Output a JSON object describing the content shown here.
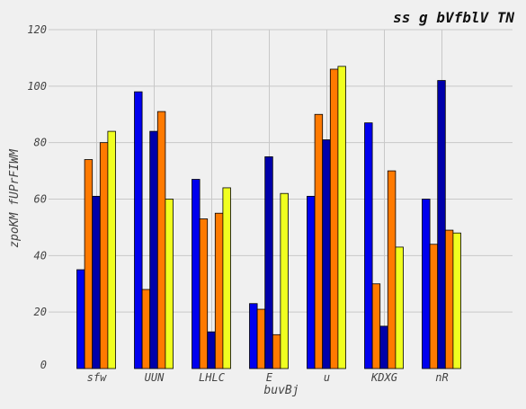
{
  "chart_data": {
    "type": "bar",
    "title": "ss g bVfblV TN",
    "xlabel": "buvBj",
    "ylabel": "zpoKM fUPrFIWM",
    "categories": [
      "sfw",
      "UUN",
      "LHLC",
      "E",
      "u",
      "KDXG",
      "nR"
    ],
    "ylim": [
      0,
      120
    ],
    "yticks": [
      0,
      20,
      40,
      60,
      80,
      100,
      120
    ],
    "grid": true,
    "series": [
      {
        "color": "#0000ee",
        "values": [
          35,
          98,
          67,
          23,
          61,
          87,
          60
        ]
      },
      {
        "color": "#ff7a00",
        "values": [
          74,
          28,
          53,
          21,
          90,
          30,
          44
        ]
      },
      {
        "color": "#0000aa",
        "values": [
          61,
          84,
          13,
          75,
          81,
          15,
          102
        ]
      },
      {
        "color": "#ff7a00",
        "values": [
          80,
          91,
          55,
          12,
          106,
          70,
          49
        ]
      },
      {
        "color": "#f0ff20",
        "values": [
          84,
          60,
          64,
          62,
          107,
          43,
          48
        ]
      }
    ]
  }
}
